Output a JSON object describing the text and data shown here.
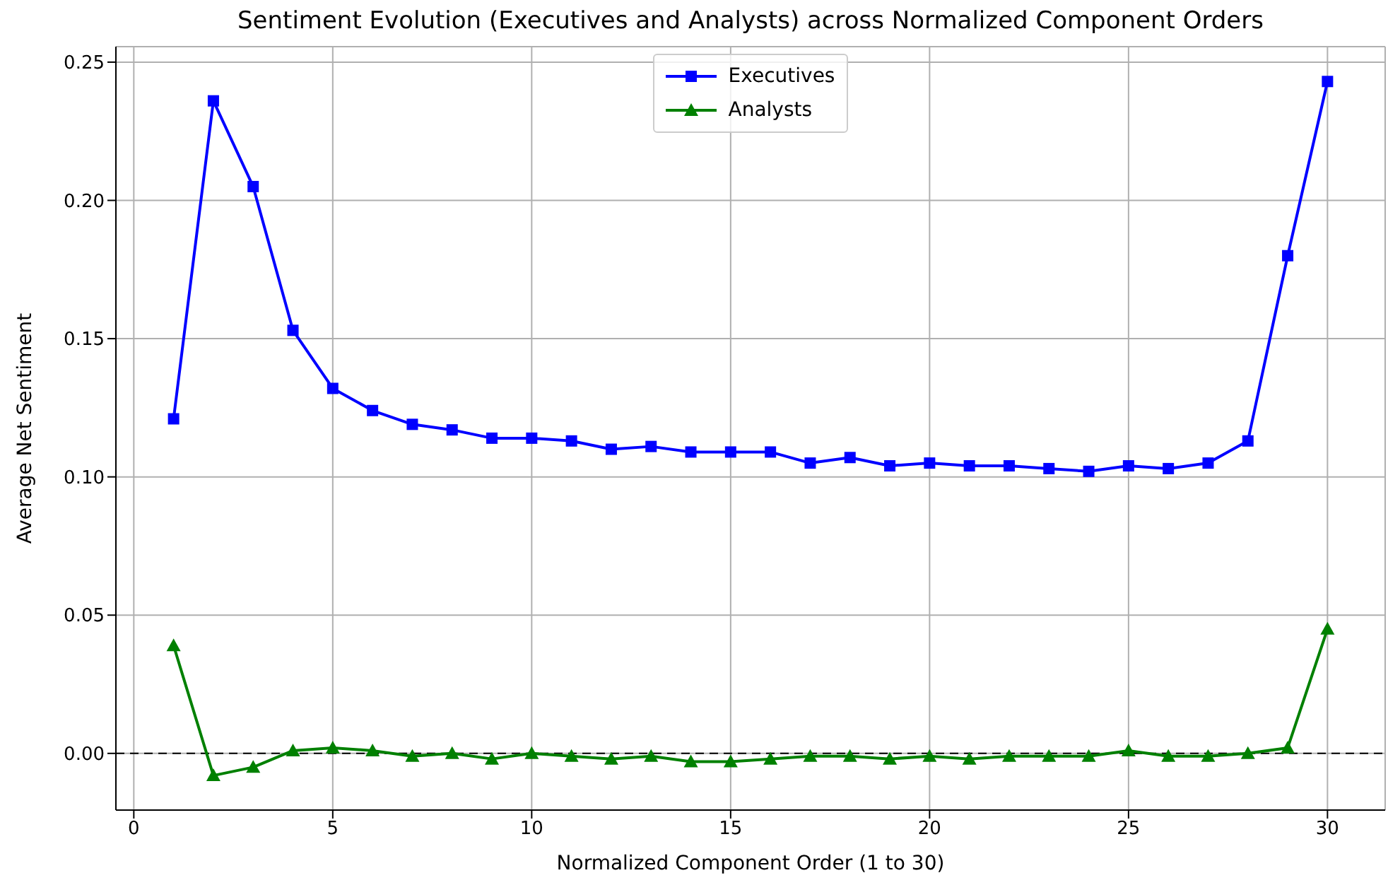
{
  "chart_data": {
    "type": "line",
    "title": "Sentiment Evolution (Executives and Analysts) across Normalized Component Orders",
    "xlabel": "Normalized Component Order (1 to 30)",
    "ylabel": "Average Net Sentiment",
    "x": [
      1,
      2,
      3,
      4,
      5,
      6,
      7,
      8,
      9,
      10,
      11,
      12,
      13,
      14,
      15,
      16,
      17,
      18,
      19,
      20,
      21,
      22,
      23,
      24,
      25,
      26,
      27,
      28,
      29,
      30
    ],
    "series": [
      {
        "name": "Executives",
        "color": "#0000ff",
        "marker": "square",
        "values": [
          0.121,
          0.236,
          0.205,
          0.153,
          0.132,
          0.124,
          0.119,
          0.117,
          0.114,
          0.114,
          0.113,
          0.11,
          0.111,
          0.109,
          0.109,
          0.109,
          0.105,
          0.107,
          0.104,
          0.105,
          0.104,
          0.104,
          0.103,
          0.102,
          0.104,
          0.103,
          0.105,
          0.113,
          0.18,
          0.243
        ]
      },
      {
        "name": "Analysts",
        "color": "#008000",
        "marker": "triangle",
        "values": [
          0.039,
          -0.008,
          -0.005,
          0.001,
          0.002,
          0.001,
          -0.001,
          0.0,
          -0.002,
          0.0,
          -0.001,
          -0.002,
          -0.001,
          -0.003,
          -0.003,
          -0.002,
          -0.001,
          -0.001,
          -0.002,
          -0.001,
          -0.002,
          -0.001,
          -0.001,
          -0.001,
          0.001,
          -0.001,
          -0.001,
          0.0,
          0.002,
          0.045
        ]
      }
    ],
    "xlim": [
      -0.45,
      31.45
    ],
    "xticks": [
      0,
      5,
      10,
      15,
      20,
      25,
      30
    ],
    "ylim": [
      -0.0205,
      0.2556
    ],
    "yticks": [
      {
        "value": 0,
        "label": "0.00"
      },
      {
        "value": 0.05,
        "label": "0.05"
      },
      {
        "value": 0.1,
        "label": "0.10"
      },
      {
        "value": 0.15,
        "label": "0.15"
      },
      {
        "value": 0.2,
        "label": "0.20"
      },
      {
        "value": 0.25,
        "label": "0.25"
      }
    ],
    "ref_lines": [
      {
        "axis": "y",
        "value": 0,
        "color": "#000000",
        "line_style": "dashed"
      }
    ],
    "grid": true,
    "legend": "top",
    "line_style": "solid"
  }
}
